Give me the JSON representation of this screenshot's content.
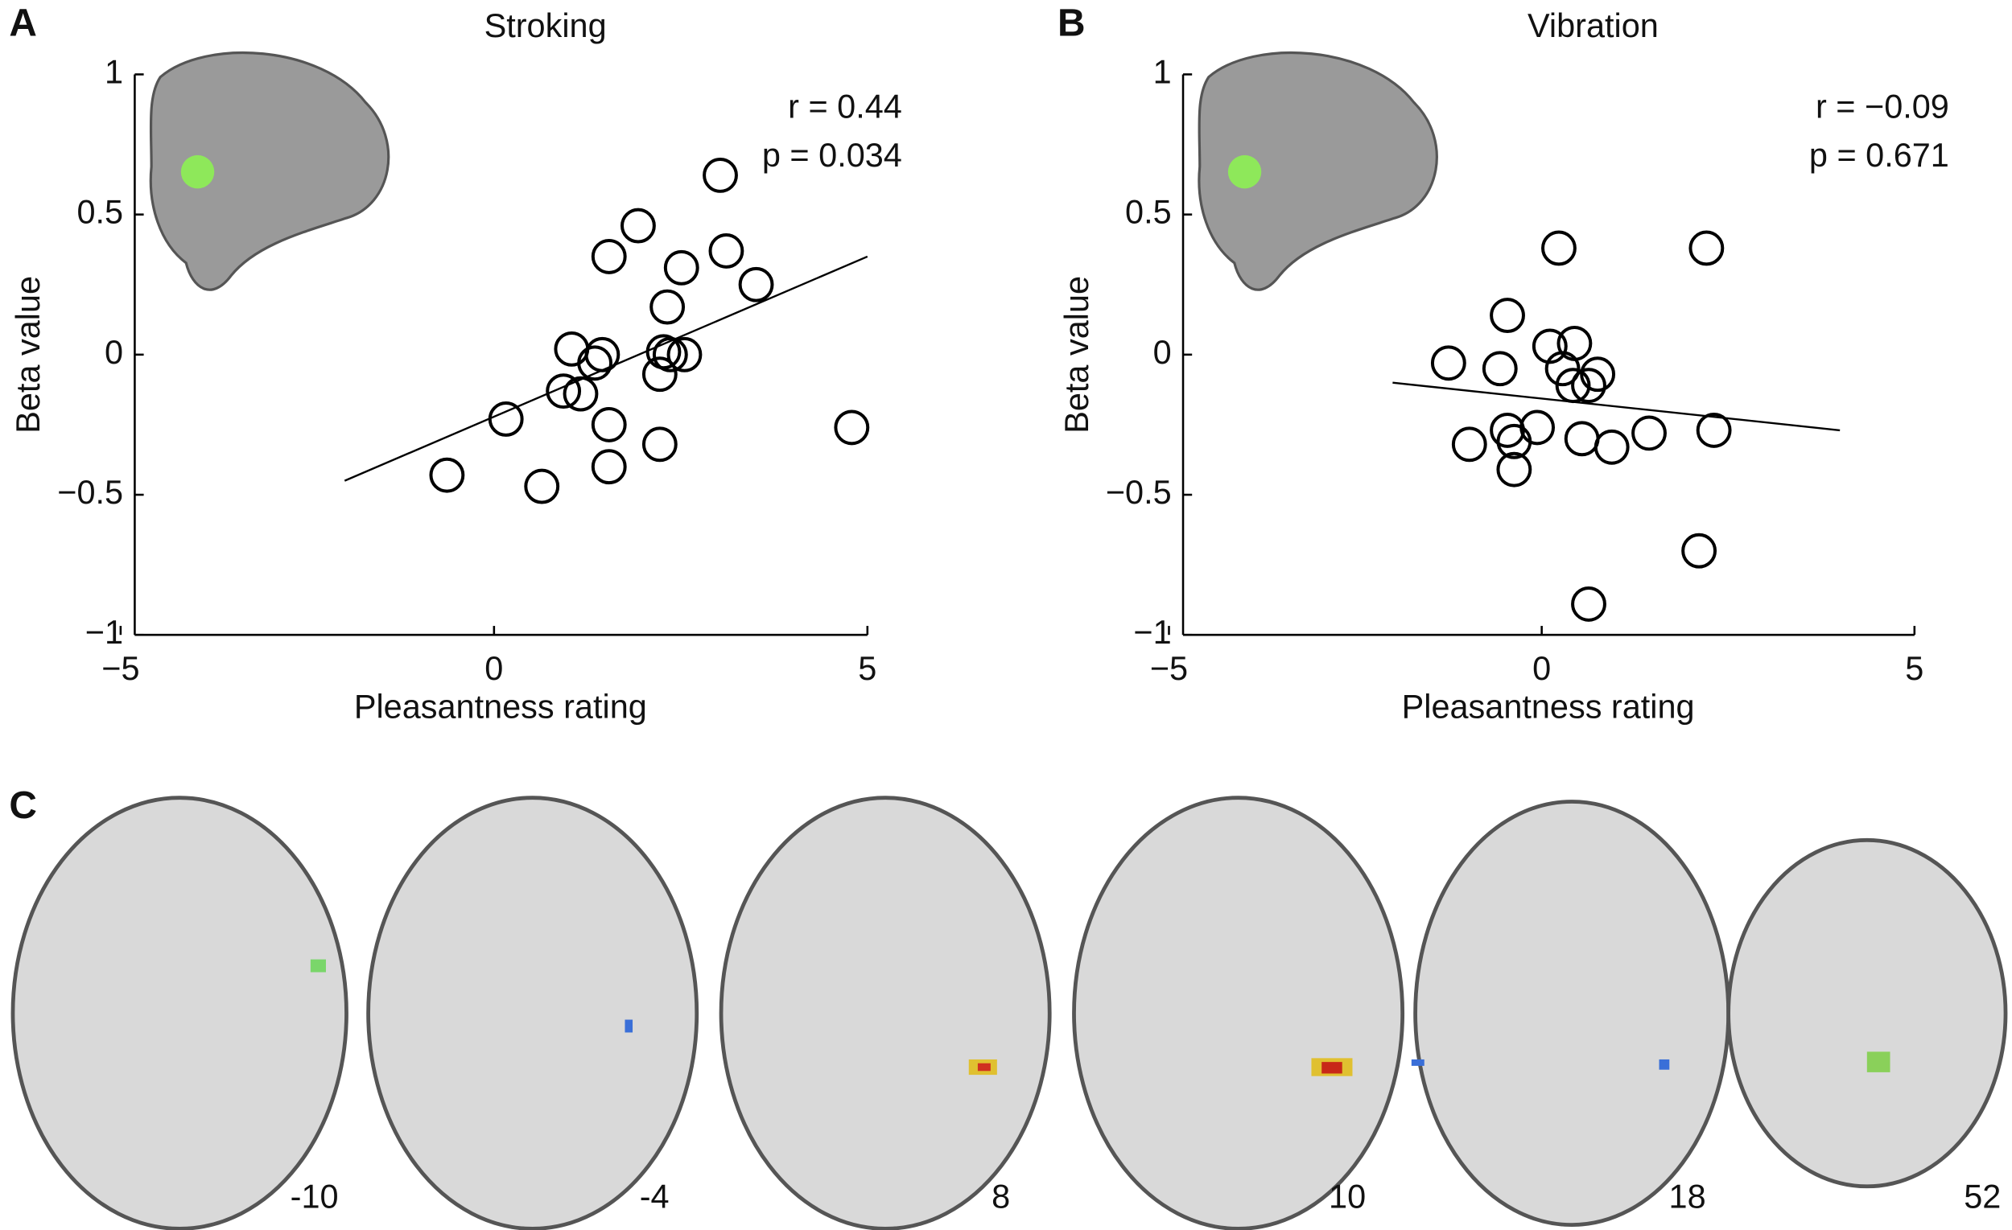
{
  "chart_data": [
    {
      "type": "scatter",
      "panel": "A",
      "title": "Stroking",
      "xlabel": "Pleasantness rating",
      "ylabel": "Beta value",
      "annotations": [
        "r = 0.44",
        "p = 0.034"
      ],
      "color": "#000000",
      "x": [
        3.03,
        1.93,
        3.11,
        1.54,
        2.51,
        3.51,
        2.32,
        1.04,
        1.45,
        1.35,
        2.27,
        2.36,
        2.55,
        2.22,
        0.93,
        1.16,
        0.16,
        1.54,
        4.79,
        2.22,
        1.54,
        -0.63,
        0.64
      ],
      "values": [
        0.64,
        0.46,
        0.37,
        0.35,
        0.31,
        0.25,
        0.17,
        0.02,
        0.0,
        -0.03,
        0.01,
        0.0,
        0.0,
        -0.07,
        -0.13,
        -0.14,
        -0.23,
        -0.25,
        -0.26,
        -0.32,
        -0.4,
        -0.43,
        -0.47
      ],
      "fit_line": {
        "x": [
          -2,
          5
        ],
        "values": [
          -0.45,
          0.35
        ]
      },
      "xlim": [
        -5,
        5
      ],
      "xticks": [
        {
          "value": -5,
          "label": "−5"
        },
        0,
        5
      ],
      "ylim": [
        -1,
        1
      ],
      "yticks": [
        {
          "value": -1,
          "label": "−1"
        },
        {
          "value": -0.5,
          "label": "−0.5"
        },
        0,
        0.5,
        1
      ]
    },
    {
      "type": "scatter",
      "panel": "B",
      "title": "Vibration",
      "xlabel": "Pleasantness rating",
      "ylabel": "Beta value",
      "annotations": [
        "r = −0.09",
        "p = 0.671"
      ],
      "color": "#000000",
      "x": [
        0.23,
        2.21,
        -0.46,
        -1.25,
        -0.56,
        0.11,
        0.44,
        0.28,
        0.75,
        0.63,
        0.42,
        -0.06,
        -0.46,
        -0.37,
        -0.97,
        0.54,
        0.94,
        1.44,
        2.31,
        -0.37,
        2.11,
        0.63
      ],
      "values": [
        0.38,
        0.38,
        0.14,
        -0.03,
        -0.05,
        0.03,
        0.04,
        -0.05,
        -0.07,
        -0.11,
        -0.11,
        -0.26,
        -0.27,
        -0.31,
        -0.32,
        -0.3,
        -0.33,
        -0.28,
        -0.27,
        -0.41,
        -0.7,
        -0.89
      ],
      "fit_line": {
        "x": [
          -2,
          4
        ],
        "values": [
          -0.1,
          -0.27
        ]
      },
      "xlim": [
        -5,
        5
      ],
      "xticks": [
        {
          "value": -5,
          "label": "−5"
        },
        0,
        5
      ],
      "ylim": [
        -1,
        1
      ],
      "yticks": [
        {
          "value": -1,
          "label": "−1"
        },
        {
          "value": -0.5,
          "label": "−0.5"
        },
        0,
        0.5,
        1
      ]
    }
  ],
  "panel_c": {
    "label": "C",
    "slices": [
      "-10",
      "-4",
      "8",
      "10",
      "18",
      "52"
    ]
  }
}
